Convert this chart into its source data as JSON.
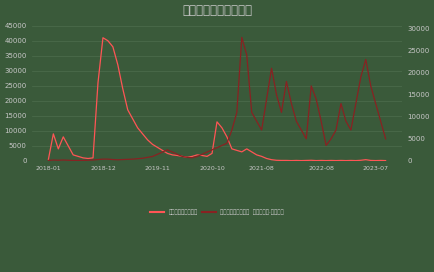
{
  "title": "中国铅锭进出口（吨）",
  "background_color": "#3a5a3a",
  "plot_bg_color": "#3a5a3a",
  "text_color": "#c8c8c8",
  "grid_color": "#4d6e4d",
  "legend1": "月度铅锭出口（左）",
  "legend2": "月度铅锭进口（右）",
  "legend_suffix": "微信公众号·永安研究",
  "x_labels": [
    "2018-01",
    "2018-12",
    "2019-11",
    "2020-10",
    "2021-08",
    "2022-08",
    "2023-07"
  ],
  "left_ylim": [
    0,
    47000
  ],
  "right_ylim": [
    0,
    32000
  ],
  "left_yticks": [
    0,
    5000,
    10000,
    15000,
    20000,
    25000,
    30000,
    35000,
    40000,
    45000
  ],
  "right_yticks": [
    0,
    5000,
    10000,
    15000,
    20000,
    25000,
    30000
  ],
  "export_values": [
    500,
    9000,
    4000,
    8000,
    5000,
    2000,
    1500,
    1000,
    800,
    1000,
    26000,
    41000,
    40000,
    38000,
    32000,
    24000,
    17000,
    14000,
    11000,
    9000,
    7000,
    5500,
    4500,
    3500,
    2500,
    2000,
    1800,
    1500,
    1200,
    1500,
    2000,
    1800,
    1500,
    2500,
    13000,
    11000,
    8000,
    4000,
    3500,
    3000,
    4000,
    3000,
    2000,
    1500,
    800,
    400,
    200,
    150,
    150,
    100,
    150,
    100,
    150,
    200,
    100,
    150,
    100,
    150,
    100,
    150,
    100,
    150,
    100,
    200,
    400,
    150,
    100,
    150,
    100
  ],
  "import_values": [
    100,
    200,
    150,
    200,
    150,
    100,
    100,
    100,
    150,
    200,
    300,
    400,
    400,
    300,
    250,
    300,
    350,
    400,
    500,
    600,
    800,
    1000,
    1500,
    2000,
    2500,
    2000,
    1500,
    1000,
    800,
    700,
    1000,
    1500,
    2000,
    2500,
    3000,
    3500,
    4000,
    7000,
    11000,
    28000,
    24000,
    11000,
    9000,
    7000,
    14000,
    21000,
    15000,
    11000,
    18000,
    13000,
    9000,
    7000,
    5000,
    17000,
    14000,
    9000,
    3500,
    5000,
    7000,
    13000,
    9000,
    7000,
    13000,
    19000,
    23000,
    17000,
    13000,
    9000,
    5000
  ],
  "line_color_export": "#ff5555",
  "line_color_import": "#882222"
}
